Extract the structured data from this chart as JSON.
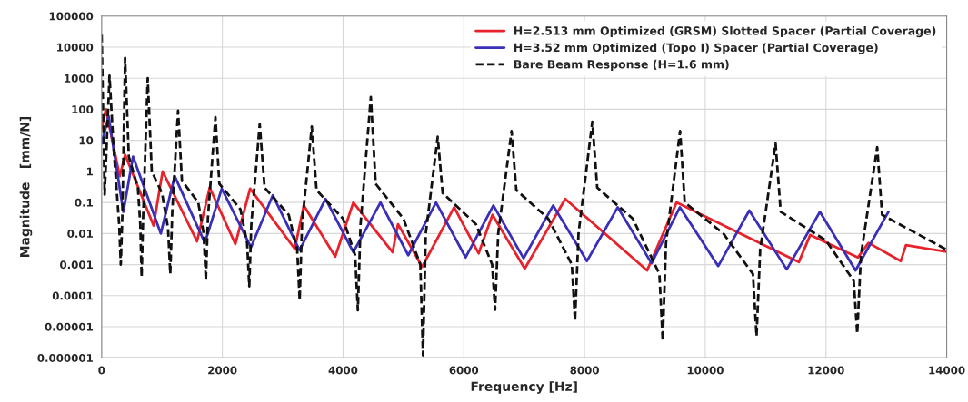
{
  "chart_data": {
    "type": "line",
    "xlabel": "Frequency [Hz]",
    "ylabel": "Magnitude   [mm/N]",
    "log": "y",
    "xlim": [
      0,
      14000
    ],
    "xticks": [
      0,
      2000,
      4000,
      6000,
      8000,
      10000,
      12000,
      14000
    ],
    "ylim": [
      1e-06,
      100000
    ],
    "yticks": [
      {
        "value": 1e-06,
        "label": "0.000001"
      },
      {
        "value": 1e-05,
        "label": "0.00001"
      },
      {
        "value": 0.0001,
        "label": "0.0001"
      },
      {
        "value": 0.001,
        "label": "0.001"
      },
      {
        "value": 0.01,
        "label": "0.01"
      },
      {
        "value": 0.1,
        "label": "0.1"
      },
      {
        "value": 1,
        "label": "1"
      },
      {
        "value": 10,
        "label": "10"
      },
      {
        "value": 100,
        "label": "100"
      },
      {
        "value": 1000,
        "label": "1000"
      },
      {
        "value": 10000,
        "label": "10000"
      },
      {
        "value": 100000,
        "label": "100000"
      }
    ],
    "grid": true,
    "legend": "top right",
    "series": [
      {
        "name": "H=2.513 mm Optimized (GRSM) Slotted Spacer (Partial Coverage)",
        "color": "#e8222a",
        "line_style": "solid",
        "x": [
          0,
          70,
          300,
          390,
          860,
          1010,
          1580,
          1790,
          2215,
          2460,
          3200,
          3350,
          3870,
          4170,
          4820,
          4910,
          5310,
          5840,
          6245,
          6475,
          7010,
          7680,
          9036,
          9525,
          11550,
          11740,
          12530,
          12705,
          13240,
          13325,
          14000
        ],
        "values": [
          25,
          100,
          0.7,
          3.4,
          0.018,
          1,
          0.0056,
          0.3,
          0.0046,
          0.28,
          0.0032,
          0.08,
          0.0018,
          0.1,
          0.0025,
          0.02,
          0.00085,
          0.07,
          0.0023,
          0.04,
          0.00074,
          0.13,
          0.00065,
          0.1,
          0.0012,
          0.009,
          0.0017,
          0.005,
          0.0013,
          0.0042,
          0.0026
        ]
      },
      {
        "name": "H=3.52 mm Optimized (Topo I) Spacer (Partial Coverage)",
        "color": "#3a2fb8",
        "line_style": "solid",
        "x": [
          0,
          115,
          360,
          520,
          980,
          1210,
          1710,
          1990,
          2475,
          2835,
          3280,
          3710,
          4170,
          4620,
          5080,
          5540,
          6030,
          6490,
          6990,
          7480,
          8040,
          8550,
          9110,
          9580,
          10215,
          10730,
          11350,
          11900,
          12490,
          13035
        ],
        "values": [
          8,
          60,
          0.05,
          3,
          0.01,
          0.7,
          0.005,
          0.28,
          0.0036,
          0.17,
          0.0029,
          0.13,
          0.0025,
          0.1,
          0.002,
          0.1,
          0.0017,
          0.08,
          0.0016,
          0.08,
          0.0013,
          0.07,
          0.0011,
          0.07,
          0.0009,
          0.055,
          0.0007,
          0.05,
          0.00065,
          0.05
        ]
      },
      {
        "name": "Bare Beam Response (H=1.6 mm)",
        "color": "#111111",
        "line_style": "dashed",
        "x": [
          0,
          50,
          130,
          200,
          290,
          317,
          345,
          388,
          450,
          600,
          640,
          662,
          690,
          763,
          830,
          1000,
          1100,
          1137,
          1170,
          1266,
          1330,
          1600,
          1690,
          1727,
          1760,
          1885,
          1950,
          2300,
          2410,
          2446,
          2480,
          2619,
          2700,
          3100,
          3240,
          3281,
          3320,
          3482,
          3560,
          4000,
          4200,
          4245,
          4290,
          4460,
          4540,
          5000,
          5280,
          5324,
          5370,
          5568,
          5650,
          6200,
          6470,
          6518,
          6570,
          6791,
          6870,
          7400,
          7790,
          7842,
          7900,
          8129,
          8210,
          8800,
          9240,
          9295,
          9350,
          9583,
          9660,
          10300,
          10790,
          10850,
          10910,
          11165,
          11250,
          12000,
          12460,
          12518,
          12580,
          12849,
          12930,
          14000
        ],
        "values": [
          25000,
          0.18,
          1200,
          5,
          0.02,
          0.001,
          0.05,
          4500,
          3,
          0.3,
          0.02,
          0.0004,
          0.05,
          1000,
          1,
          0.2,
          0.015,
          0.0005,
          0.05,
          90,
          0.5,
          0.1,
          0.01,
          0.0003,
          0.03,
          56,
          0.4,
          0.06,
          0.005,
          0.0002,
          0.02,
          33,
          0.3,
          0.04,
          0.003,
          7e-05,
          0.02,
          28,
          0.25,
          0.03,
          0.002,
          3.4e-05,
          0.02,
          250,
          0.4,
          0.03,
          0.001,
          1.2e-06,
          0.01,
          13,
          0.2,
          0.02,
          0.001,
          3.5e-05,
          0.01,
          20,
          0.25,
          0.03,
          0.001,
          1.5e-05,
          0.01,
          40,
          0.3,
          0.03,
          0.0005,
          3.5e-06,
          0.005,
          20,
          0.1,
          0.01,
          0.0005,
          5e-06,
          0.003,
          8,
          0.05,
          0.006,
          0.0003,
          6e-06,
          0.002,
          6,
          0.04,
          0.003
        ]
      }
    ]
  }
}
